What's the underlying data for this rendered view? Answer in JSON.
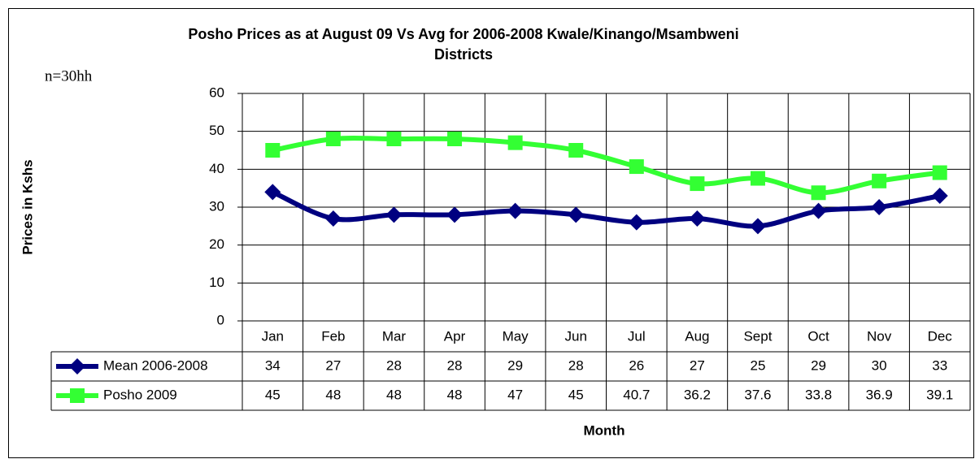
{
  "chart_data": {
    "type": "line",
    "title": "Posho Prices as at August 09 Vs Avg for 2006-2008 Kwale/Kinango/Msambweni",
    "title_line2": "Districts",
    "annotation": "n=30hh",
    "y_label": "Prices in Kshs",
    "x_label": "Month",
    "categories": [
      "Jan",
      "Feb",
      "Mar",
      "Apr",
      "May",
      "Jun",
      "Jul",
      "Aug",
      "Sept",
      "Oct",
      "Nov",
      "Dec"
    ],
    "series": [
      {
        "name": "Mean 2006-2008",
        "color": "#000080",
        "marker": "diamond",
        "values": [
          34,
          27,
          28,
          28,
          29,
          28,
          26,
          27,
          25,
          29,
          30,
          33
        ]
      },
      {
        "name": "Posho 2009",
        "color": "#33ff33",
        "marker": "square",
        "values": [
          45,
          48,
          48,
          48,
          47,
          45,
          40.7,
          36.2,
          37.6,
          33.8,
          36.9,
          39.1
        ]
      }
    ],
    "ylim": [
      0,
      60
    ],
    "yticks": [
      0,
      10,
      20,
      30,
      40,
      50,
      60
    ],
    "grid": true
  }
}
